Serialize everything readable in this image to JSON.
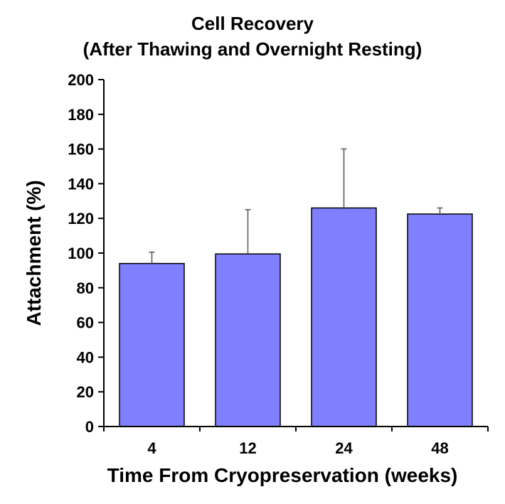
{
  "chart_data": {
    "type": "bar",
    "title": "Cell Recovery",
    "subtitle": "(After Thawing and Overnight Resting)",
    "xlabel": "Time From Cryopreservation (weeks)",
    "ylabel": "Attachment (%)",
    "categories": [
      "4",
      "12",
      "24",
      "48"
    ],
    "values": [
      94,
      99.5,
      126,
      122.5
    ],
    "error_upper": [
      6.5,
      25.5,
      34,
      3.5
    ],
    "ylim": [
      0,
      200
    ],
    "yticks": [
      "0",
      "20",
      "40",
      "60",
      "80",
      "100",
      "120",
      "140",
      "160",
      "180",
      "200"
    ],
    "ytick_values": [
      0,
      20,
      40,
      60,
      80,
      100,
      120,
      140,
      160,
      180,
      200
    ],
    "bar_color": "#8080ff",
    "bar_edge_color": "#000000",
    "error_bar_color": "#555555",
    "grid": false,
    "legend": "none"
  }
}
